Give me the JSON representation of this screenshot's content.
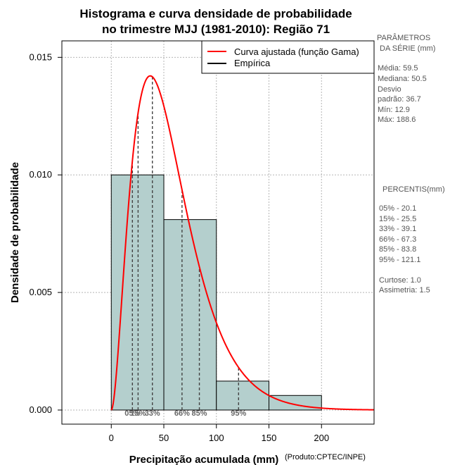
{
  "chart_data": {
    "type": "bar",
    "title_line1": "Histograma e curva densidade de probabilidade",
    "title_line2": "no trimestre MJJ (1981-2010): Região 71",
    "xlabel": "Precipitação acumulada (mm)",
    "ylabel": "Densidade de probabilidade",
    "credit": "(Produto:CPTEC/INPE)",
    "xlim": [
      -47,
      250
    ],
    "ylim": [
      -0.0006,
      0.0157
    ],
    "x_ticks": [
      0,
      50,
      100,
      150,
      200
    ],
    "x_tick_labels": [
      "0",
      "50",
      "100",
      "150",
      "200"
    ],
    "y_ticks": [
      0.0,
      0.005,
      0.01,
      0.015
    ],
    "y_tick_labels": [
      "0.000",
      "0.005",
      "0.010",
      "0.015"
    ],
    "grid": true,
    "histogram": {
      "name": "Empírica",
      "bins": [
        {
          "start": 0,
          "end": 50,
          "density": 0.01
        },
        {
          "start": 50,
          "end": 100,
          "density": 0.0081
        },
        {
          "start": 100,
          "end": 150,
          "density": 0.00123
        },
        {
          "start": 150,
          "end": 200,
          "density": 0.00062
        }
      ],
      "fill_color": "#b4cfcd",
      "edge_color": "#000000"
    },
    "curve": {
      "name": "Curva ajustada (função Gama)",
      "shape": 2.9,
      "scale": 19.5,
      "color": "#ff0000"
    },
    "percentile_lines": [
      {
        "label": "05%",
        "value": 20.1
      },
      {
        "label": "15%",
        "value": 25.5
      },
      {
        "label": "33%",
        "value": 39.1
      },
      {
        "label": "66%",
        "value": 67.3
      },
      {
        "label": "85%",
        "value": 83.8
      },
      {
        "label": "95%",
        "value": 121.1
      }
    ],
    "legend": {
      "position": "top-right",
      "entries": [
        {
          "label": "Curva ajustada (função Gama)",
          "color": "#ff0000"
        },
        {
          "label": "Empírica",
          "color": "#000000"
        }
      ]
    },
    "side_panel": {
      "params_header_1": "PARÂMETROS",
      "params_header_2": "DA SÉRIE (mm)",
      "media": "Média:  59.5",
      "mediana": "Mediana:  50.5",
      "desvio_1": "Desvio",
      "desvio_2": "padrão:  36.7",
      "min": "Mín:  12.9",
      "max": "Máx:  188.6",
      "percentis_header": "PERCENTIS(mm)",
      "percentis": [
        "05% -  20.1",
        "15% -  25.5",
        "33% -  39.1",
        "66% -  67.3",
        "85% -  83.8",
        "95% -  121.1"
      ],
      "curtose": "Curtose:  1.0",
      "assimetria": "Assimetria:  1.5"
    }
  }
}
